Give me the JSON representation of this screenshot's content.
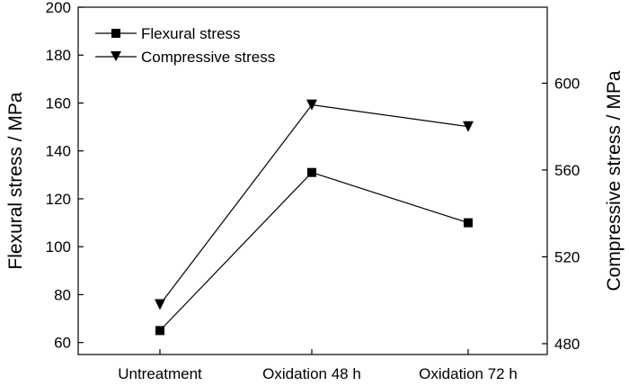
{
  "chart_data": {
    "type": "line",
    "categories": [
      "Untreatment",
      "Oxidation 48 h",
      "Oxidation 72 h"
    ],
    "series": [
      {
        "name": "Flexural stress",
        "axis": "left",
        "marker": "square",
        "values": [
          65,
          131,
          110
        ]
      },
      {
        "name": "Compressive stress",
        "axis": "right",
        "marker": "triangle-down",
        "values": [
          498,
          590,
          580
        ]
      }
    ],
    "ylabel": "Flexural stress / MPa",
    "ylabel_right": "Compressive stress / MPa",
    "ylim": [
      55,
      200
    ],
    "ylim_right": [
      475,
      635
    ],
    "yticks": [
      60,
      80,
      100,
      120,
      140,
      160,
      180,
      200
    ],
    "yticks_right": [
      480,
      520,
      560,
      600
    ],
    "legend_position": "top-left",
    "grid": false
  },
  "colors": {
    "line": "#000000",
    "background": "#ffffff"
  }
}
